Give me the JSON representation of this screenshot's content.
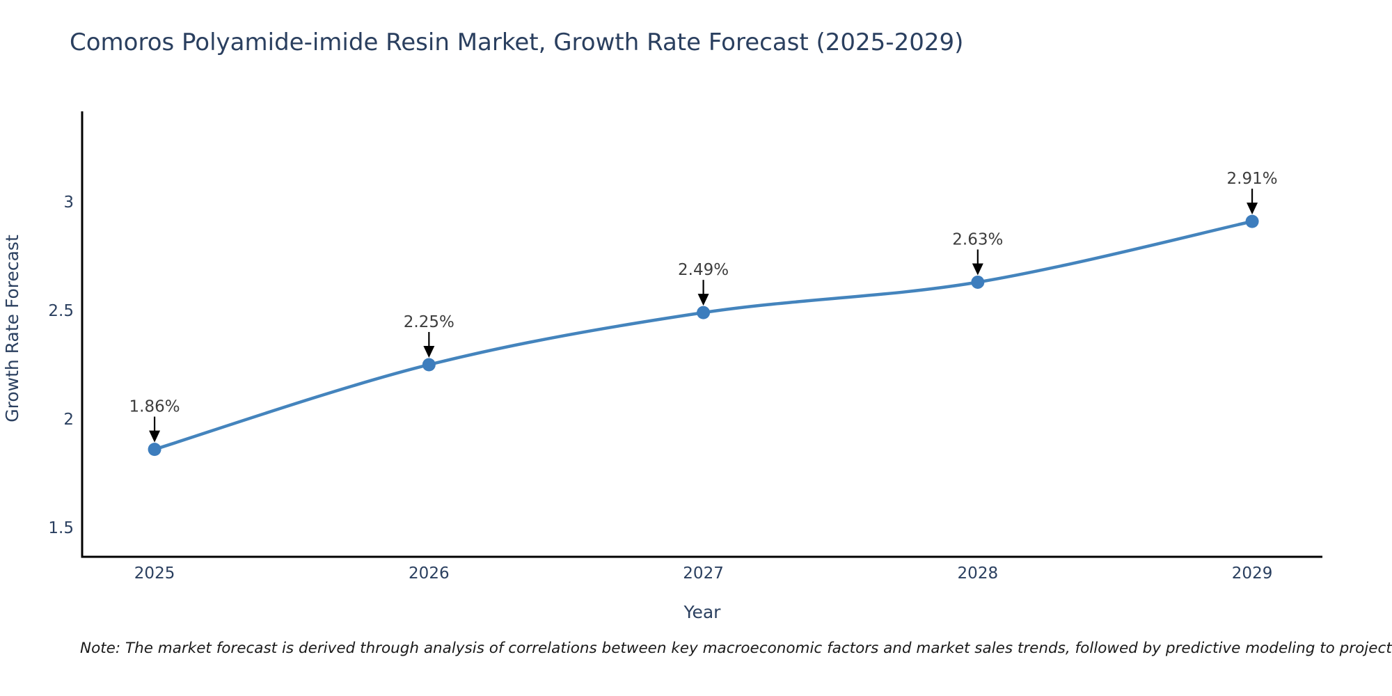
{
  "title": "Comoros Polyamide-imide Resin Market, Growth Rate Forecast (2025-2029)",
  "note": "Note: The market forecast is derived through analysis of correlations between key macroeconomic factors and market sales trends, followed by predictive modeling to project future sales",
  "colors": {
    "title": "#2a3f5f",
    "tick_label": "#2a3f5f",
    "axis_title": "#2a3f5f",
    "axis_line": "#000000",
    "line": "#4484bd",
    "marker": "#3d7dbd",
    "annotation_text": "#3d3d3d",
    "annotation_arrow": "#000000",
    "note_text": "#1a1a1a",
    "background": "#ffffff"
  },
  "chart_data": {
    "type": "line",
    "title": "Comoros Polyamide-imide Resin Market, Growth Rate Forecast (2025-2029)",
    "xlabel": "Year",
    "ylabel": "Growth Rate Forecast",
    "x": [
      2025,
      2026,
      2027,
      2028,
      2029
    ],
    "categories": [
      "2025",
      "2026",
      "2027",
      "2028",
      "2029"
    ],
    "series": [
      {
        "name": "Growth Rate Forecast",
        "values": [
          1.86,
          2.25,
          2.49,
          2.63,
          2.91
        ],
        "unit": "%",
        "point_labels": [
          "1.86%",
          "2.25%",
          "2.49%",
          "2.63%",
          "2.91%"
        ]
      }
    ],
    "yticks": [
      1.5,
      2,
      2.5,
      3
    ],
    "ytick_labels": [
      "1.5",
      "2",
      "2.5",
      "3"
    ],
    "xlim": [
      2024.736,
      2029.256
    ],
    "ylim": [
      1.365,
      3.417
    ],
    "grid": false,
    "legend_position": "none",
    "line_shape": "spline",
    "markers": true,
    "annotations": "value labels with down arrows above each point"
  }
}
